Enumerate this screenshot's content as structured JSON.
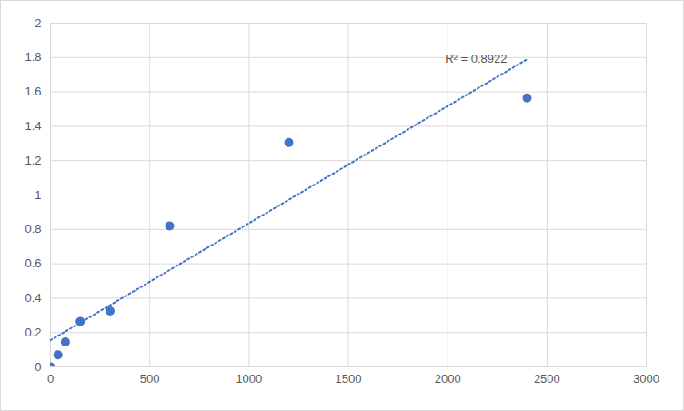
{
  "chart_data": {
    "type": "scatter",
    "x": [
      0,
      37.5,
      75,
      150,
      300,
      600,
      1200,
      2400
    ],
    "values": [
      0,
      0.07,
      0.145,
      0.265,
      0.325,
      0.82,
      1.305,
      1.565
    ],
    "color": "#4472c4",
    "marker": "circle",
    "xlim": [
      0,
      3000
    ],
    "xticks": [
      0,
      500,
      1000,
      1500,
      2000,
      2500,
      3000
    ],
    "ylim": [
      0,
      2
    ],
    "yticks": [
      0,
      0.2,
      0.4,
      0.6,
      0.8,
      1,
      1.2,
      1.4,
      1.6,
      1.8,
      2
    ],
    "grid": true,
    "trendline": {
      "x": [
        0,
        2400
      ],
      "values": [
        0.155,
        1.79
      ],
      "line_style": "dotted"
    },
    "annotations": [
      {
        "text": "R² = 0.8922"
      }
    ]
  }
}
